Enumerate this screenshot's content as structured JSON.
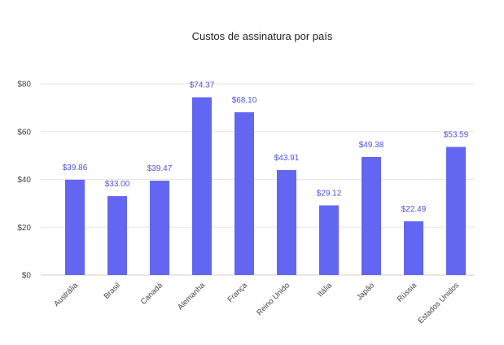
{
  "chart_data": {
    "type": "bar",
    "title": "Custos de assinatura por país",
    "xlabel": "",
    "ylabel": "",
    "ylim": [
      0,
      80
    ],
    "y_ticks": [
      {
        "value": 0,
        "label": "$0"
      },
      {
        "value": 20,
        "label": "$20"
      },
      {
        "value": 40,
        "label": "$40"
      },
      {
        "value": 60,
        "label": "$60"
      },
      {
        "value": 80,
        "label": "$80"
      }
    ],
    "grid": true,
    "legend": "none",
    "categories": [
      "Austrália",
      "Brasil",
      "Canadá",
      "Alemanha",
      "França",
      "Reino Unido",
      "Itália",
      "Japão",
      "Rússia",
      "Estados Unidos"
    ],
    "values": [
      39.86,
      33.0,
      39.47,
      74.37,
      68.1,
      43.91,
      29.12,
      49.38,
      22.49,
      53.59
    ],
    "data_labels": [
      "$39.86",
      "$33.00",
      "$39.47",
      "$74.37",
      "$68.10",
      "$43.91",
      "$29.12",
      "$49.38",
      "$22.49",
      "$53.59"
    ],
    "colors": {
      "bar": "#6366f1",
      "label": "#4f52d9"
    }
  }
}
